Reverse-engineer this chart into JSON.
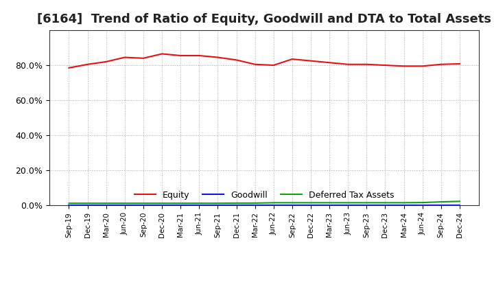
{
  "title": "[6164]  Trend of Ratio of Equity, Goodwill and DTA to Total Assets",
  "x_labels": [
    "Sep-19",
    "Dec-19",
    "Mar-20",
    "Jun-20",
    "Sep-20",
    "Dec-20",
    "Mar-21",
    "Jun-21",
    "Sep-21",
    "Dec-21",
    "Mar-22",
    "Jun-22",
    "Sep-22",
    "Dec-22",
    "Mar-23",
    "Jun-23",
    "Sep-23",
    "Dec-23",
    "Mar-24",
    "Jun-24",
    "Sep-24",
    "Dec-24"
  ],
  "equity": [
    78.5,
    80.5,
    82.0,
    84.5,
    84.0,
    86.5,
    85.5,
    85.5,
    84.5,
    83.0,
    80.5,
    80.0,
    83.5,
    82.5,
    81.5,
    80.5,
    80.5,
    80.0,
    79.5,
    79.5,
    80.5,
    80.8
  ],
  "goodwill": [
    0.0,
    0.0,
    0.0,
    0.0,
    0.0,
    0.0,
    0.0,
    0.0,
    0.0,
    0.0,
    0.0,
    0.0,
    0.0,
    0.0,
    0.0,
    0.0,
    0.0,
    0.0,
    0.0,
    0.0,
    0.0,
    0.0
  ],
  "dta": [
    1.2,
    1.2,
    1.2,
    1.2,
    1.2,
    1.2,
    1.2,
    1.2,
    1.2,
    1.3,
    1.3,
    1.5,
    1.5,
    1.5,
    1.5,
    1.5,
    1.5,
    1.5,
    1.5,
    1.6,
    2.0,
    2.3
  ],
  "equity_color": "#e81010",
  "goodwill_color": "#1010e8",
  "dta_color": "#10a010",
  "ylim": [
    0,
    100
  ],
  "yticks": [
    0,
    20,
    40,
    60,
    80
  ],
  "ytick_labels": [
    "0.0%",
    "20.0%",
    "40.0%",
    "60.0%",
    "80.0%"
  ],
  "background_color": "#ffffff",
  "grid_color": "#aaaaaa",
  "title_fontsize": 13,
  "legend_labels": [
    "Equity",
    "Goodwill",
    "Deferred Tax Assets"
  ]
}
